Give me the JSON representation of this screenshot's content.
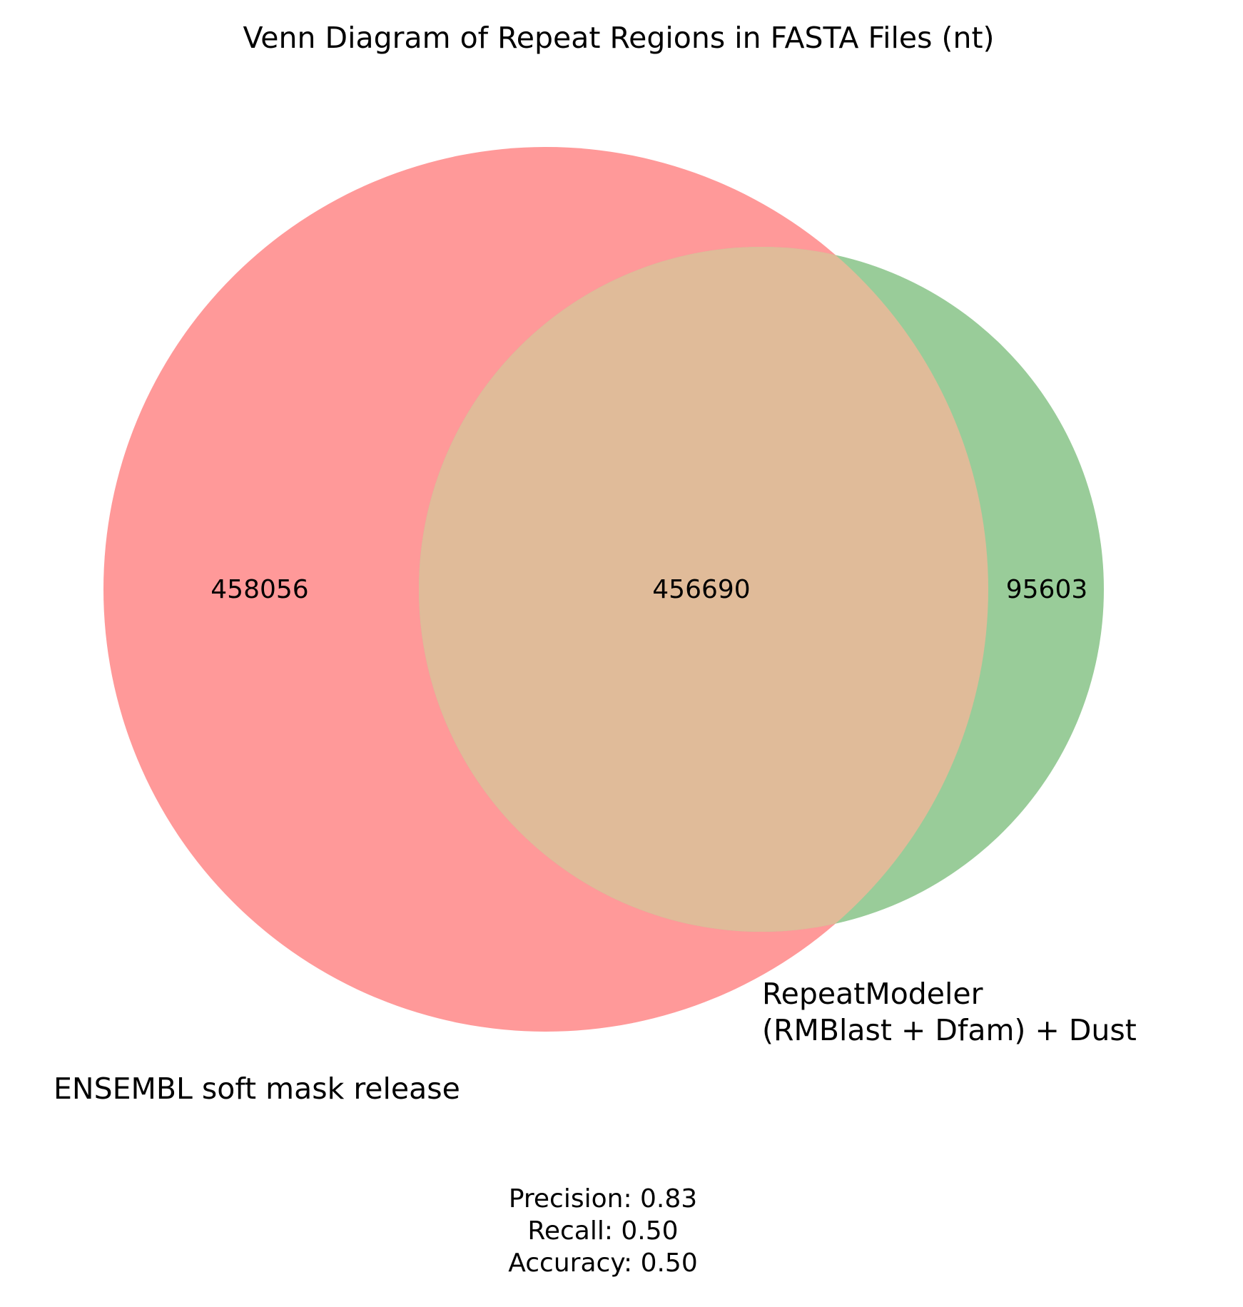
{
  "title": "Venn Diagram of Repeat Regions in FASTA Files (nt)",
  "chart_data": {
    "type": "venn2",
    "sets": [
      {
        "label": "ENSEMBL soft mask release",
        "color": "#ff9999"
      },
      {
        "label_lines": [
          "RepeatModeler",
          "(RMBlast + Dfam) + Dust"
        ],
        "color": "#99cc99"
      }
    ],
    "overlap_color": "#e0bb99",
    "regions": {
      "set_a_only": "458056",
      "intersection": "456690",
      "set_b_only": "95603"
    }
  },
  "metrics": [
    "Precision: 0.83",
    "Recall: 0.50",
    "Accuracy: 0.50"
  ]
}
